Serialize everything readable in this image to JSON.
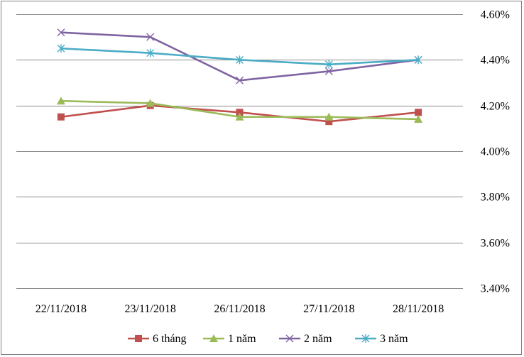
{
  "chart_data": {
    "type": "line",
    "title": "",
    "xlabel": "",
    "ylabel": "",
    "categories": [
      "22/11/2018",
      "23/11/2018",
      "26/11/2018",
      "27/11/2018",
      "28/11/2018"
    ],
    "ylim": [
      3.4,
      4.6
    ],
    "yticks": [
      3.4,
      3.6,
      3.8,
      4.0,
      4.2,
      4.4,
      4.6
    ],
    "ytick_labels": [
      "3.40%",
      "3.60%",
      "3.80%",
      "4.00%",
      "4.20%",
      "4.40%",
      "4.60%"
    ],
    "y_axis_side": "right",
    "grid": true,
    "legend_position": "bottom",
    "series": [
      {
        "name": "6 tháng",
        "values": [
          4.15,
          4.2,
          4.17,
          4.13,
          4.17
        ],
        "color": "#c0504d",
        "marker": "square"
      },
      {
        "name": "1 năm",
        "values": [
          4.22,
          4.21,
          4.15,
          4.15,
          4.14
        ],
        "color": "#9bbb59",
        "marker": "triangle"
      },
      {
        "name": "2 năm",
        "values": [
          4.52,
          4.5,
          4.31,
          4.35,
          4.4
        ],
        "color": "#8064a2",
        "marker": "x"
      },
      {
        "name": "3 năm",
        "values": [
          4.45,
          4.43,
          4.4,
          4.38,
          4.4
        ],
        "color": "#4bacc6",
        "marker": "star"
      }
    ]
  }
}
